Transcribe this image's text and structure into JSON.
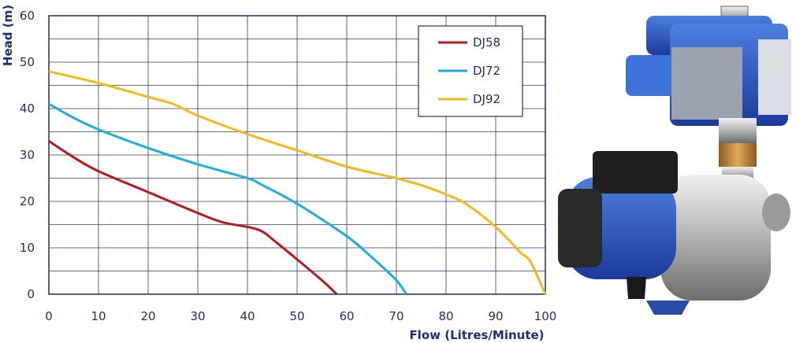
{
  "chart_data": {
    "type": "line",
    "title": "",
    "xlabel": "Flow (Litres/Minute)",
    "ylabel": "Head (m)",
    "xlim": [
      0,
      100
    ],
    "ylim": [
      0,
      60
    ],
    "xticks": [
      "0",
      "10",
      "20",
      "30",
      "40",
      "50",
      "60",
      "70",
      "80",
      "90",
      "100"
    ],
    "yticks": [
      "0",
      "10",
      "20",
      "30",
      "40",
      "50",
      "60"
    ],
    "grid": true,
    "legend_position": "top-right",
    "series": [
      {
        "name": "DJ58",
        "color": "#c0161e",
        "x": [
          0,
          5,
          10,
          20,
          30,
          35,
          40,
          43,
          46,
          50,
          55,
          58
        ],
        "y": [
          33,
          29.5,
          26.5,
          22,
          17.5,
          15.5,
          14.5,
          13.5,
          11,
          7.5,
          3,
          0
        ]
      },
      {
        "name": "DJ72",
        "color": "#1aaee5",
        "x": [
          0,
          5,
          10,
          20,
          30,
          40,
          43,
          50,
          60,
          65,
          70,
          72
        ],
        "y": [
          41,
          38,
          35.5,
          31.5,
          28,
          25,
          23.5,
          19.5,
          12.5,
          8,
          3,
          0
        ]
      },
      {
        "name": "DJ92",
        "color": "#f6b91b",
        "x": [
          0,
          10,
          20,
          25,
          30,
          40,
          50,
          60,
          70,
          75,
          80,
          84,
          90,
          95,
          97,
          100
        ],
        "y": [
          48,
          45.5,
          42.5,
          41,
          38.5,
          34.5,
          31,
          27.5,
          25,
          23.5,
          21.5,
          19.5,
          14.5,
          9,
          7,
          0
        ]
      }
    ]
  },
  "product_image": {
    "icon": "jet-pump-with-pressure-controller"
  }
}
